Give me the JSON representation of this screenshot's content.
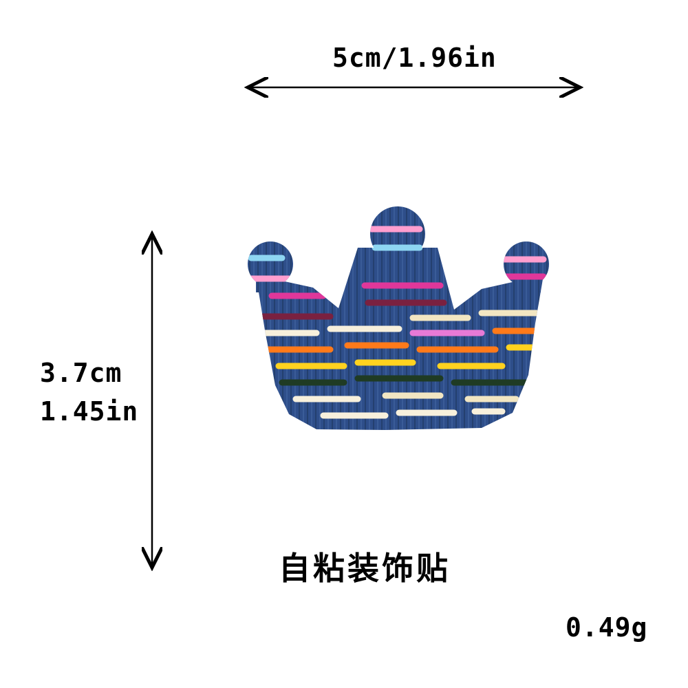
{
  "dimensions": {
    "width_label": "5cm/1.96in",
    "height_cm": "3.7cm",
    "height_in": "1.45in"
  },
  "caption": "自粘装饰贴",
  "weight": "0.49g",
  "product": {
    "base_color": "#2e4e8a",
    "stripe_colors": [
      "#ff9ecf",
      "#8ed6f2",
      "#e0379a",
      "#7a2140",
      "#f2e6c2",
      "#ff7a1a",
      "#ffd21f",
      "#1f3b24",
      "#f7f0dc",
      "#e87ad6"
    ]
  }
}
